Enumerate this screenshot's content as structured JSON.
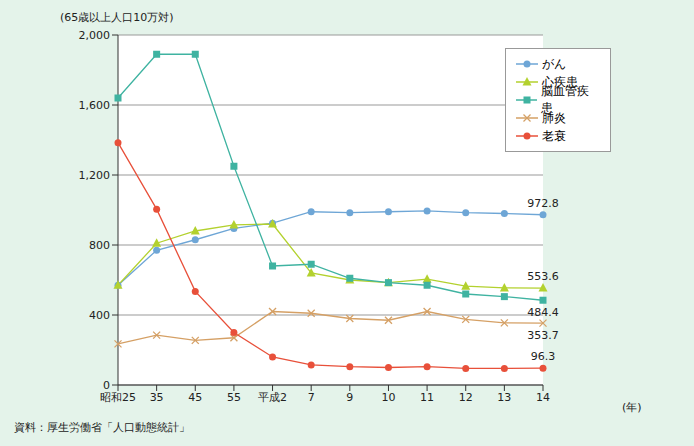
{
  "chart_data": {
    "type": "line",
    "y_label": "(65歳以上人口10万対)",
    "x_label": "(年)",
    "source": "資料：厚生労働省「人口動態統計」",
    "categories": [
      "昭和25",
      "35",
      "45",
      "55",
      "平成2",
      "7",
      "9",
      "10",
      "11",
      "12",
      "13",
      "14"
    ],
    "series": [
      {
        "name": "がん",
        "color": "#6ea6d6",
        "marker": "circle",
        "values": [
          570,
          770,
          830,
          895,
          925,
          990,
          985,
          990,
          995,
          985,
          980,
          972.8
        ]
      },
      {
        "name": "心疾患",
        "color": "#b3d12e",
        "marker": "triangle",
        "values": [
          570,
          810,
          880,
          915,
          920,
          640,
          600,
          585,
          605,
          565,
          555,
          553.6
        ]
      },
      {
        "name": "脳血管疾患",
        "color": "#3fb3a1",
        "marker": "square",
        "values": [
          1640,
          1890,
          1890,
          1250,
          680,
          690,
          610,
          585,
          570,
          520,
          505,
          484.4
        ]
      },
      {
        "name": "肺炎",
        "color": "#d5a065",
        "marker": "x",
        "values": [
          235,
          285,
          255,
          270,
          420,
          410,
          380,
          370,
          420,
          375,
          355,
          353.7
        ]
      },
      {
        "name": "老衰",
        "color": "#e8503a",
        "marker": "circle",
        "values": [
          1385,
          1005,
          535,
          300,
          160,
          115,
          105,
          100,
          105,
          95,
          95,
          96.3
        ]
      }
    ],
    "annotations": [
      {
        "x": "14",
        "y": 972.8,
        "text": "972.8"
      },
      {
        "x": "14",
        "y": 553.6,
        "text": "553.6"
      },
      {
        "x": "14",
        "y": 484.4,
        "text": "484.4"
      },
      {
        "x": "14",
        "y": 353.7,
        "text": "353.7"
      },
      {
        "x": "14",
        "y": 96.3,
        "text": "96.3"
      }
    ],
    "ylim": [
      0,
      2000
    ],
    "yticks": [
      0,
      400,
      800,
      {
        "value": 1200,
        "label": "1,200"
      },
      {
        "value": 1600,
        "label": "1,600"
      },
      {
        "value": 2000,
        "label": "2,000"
      }
    ],
    "grid": true,
    "legend": "top-right"
  }
}
